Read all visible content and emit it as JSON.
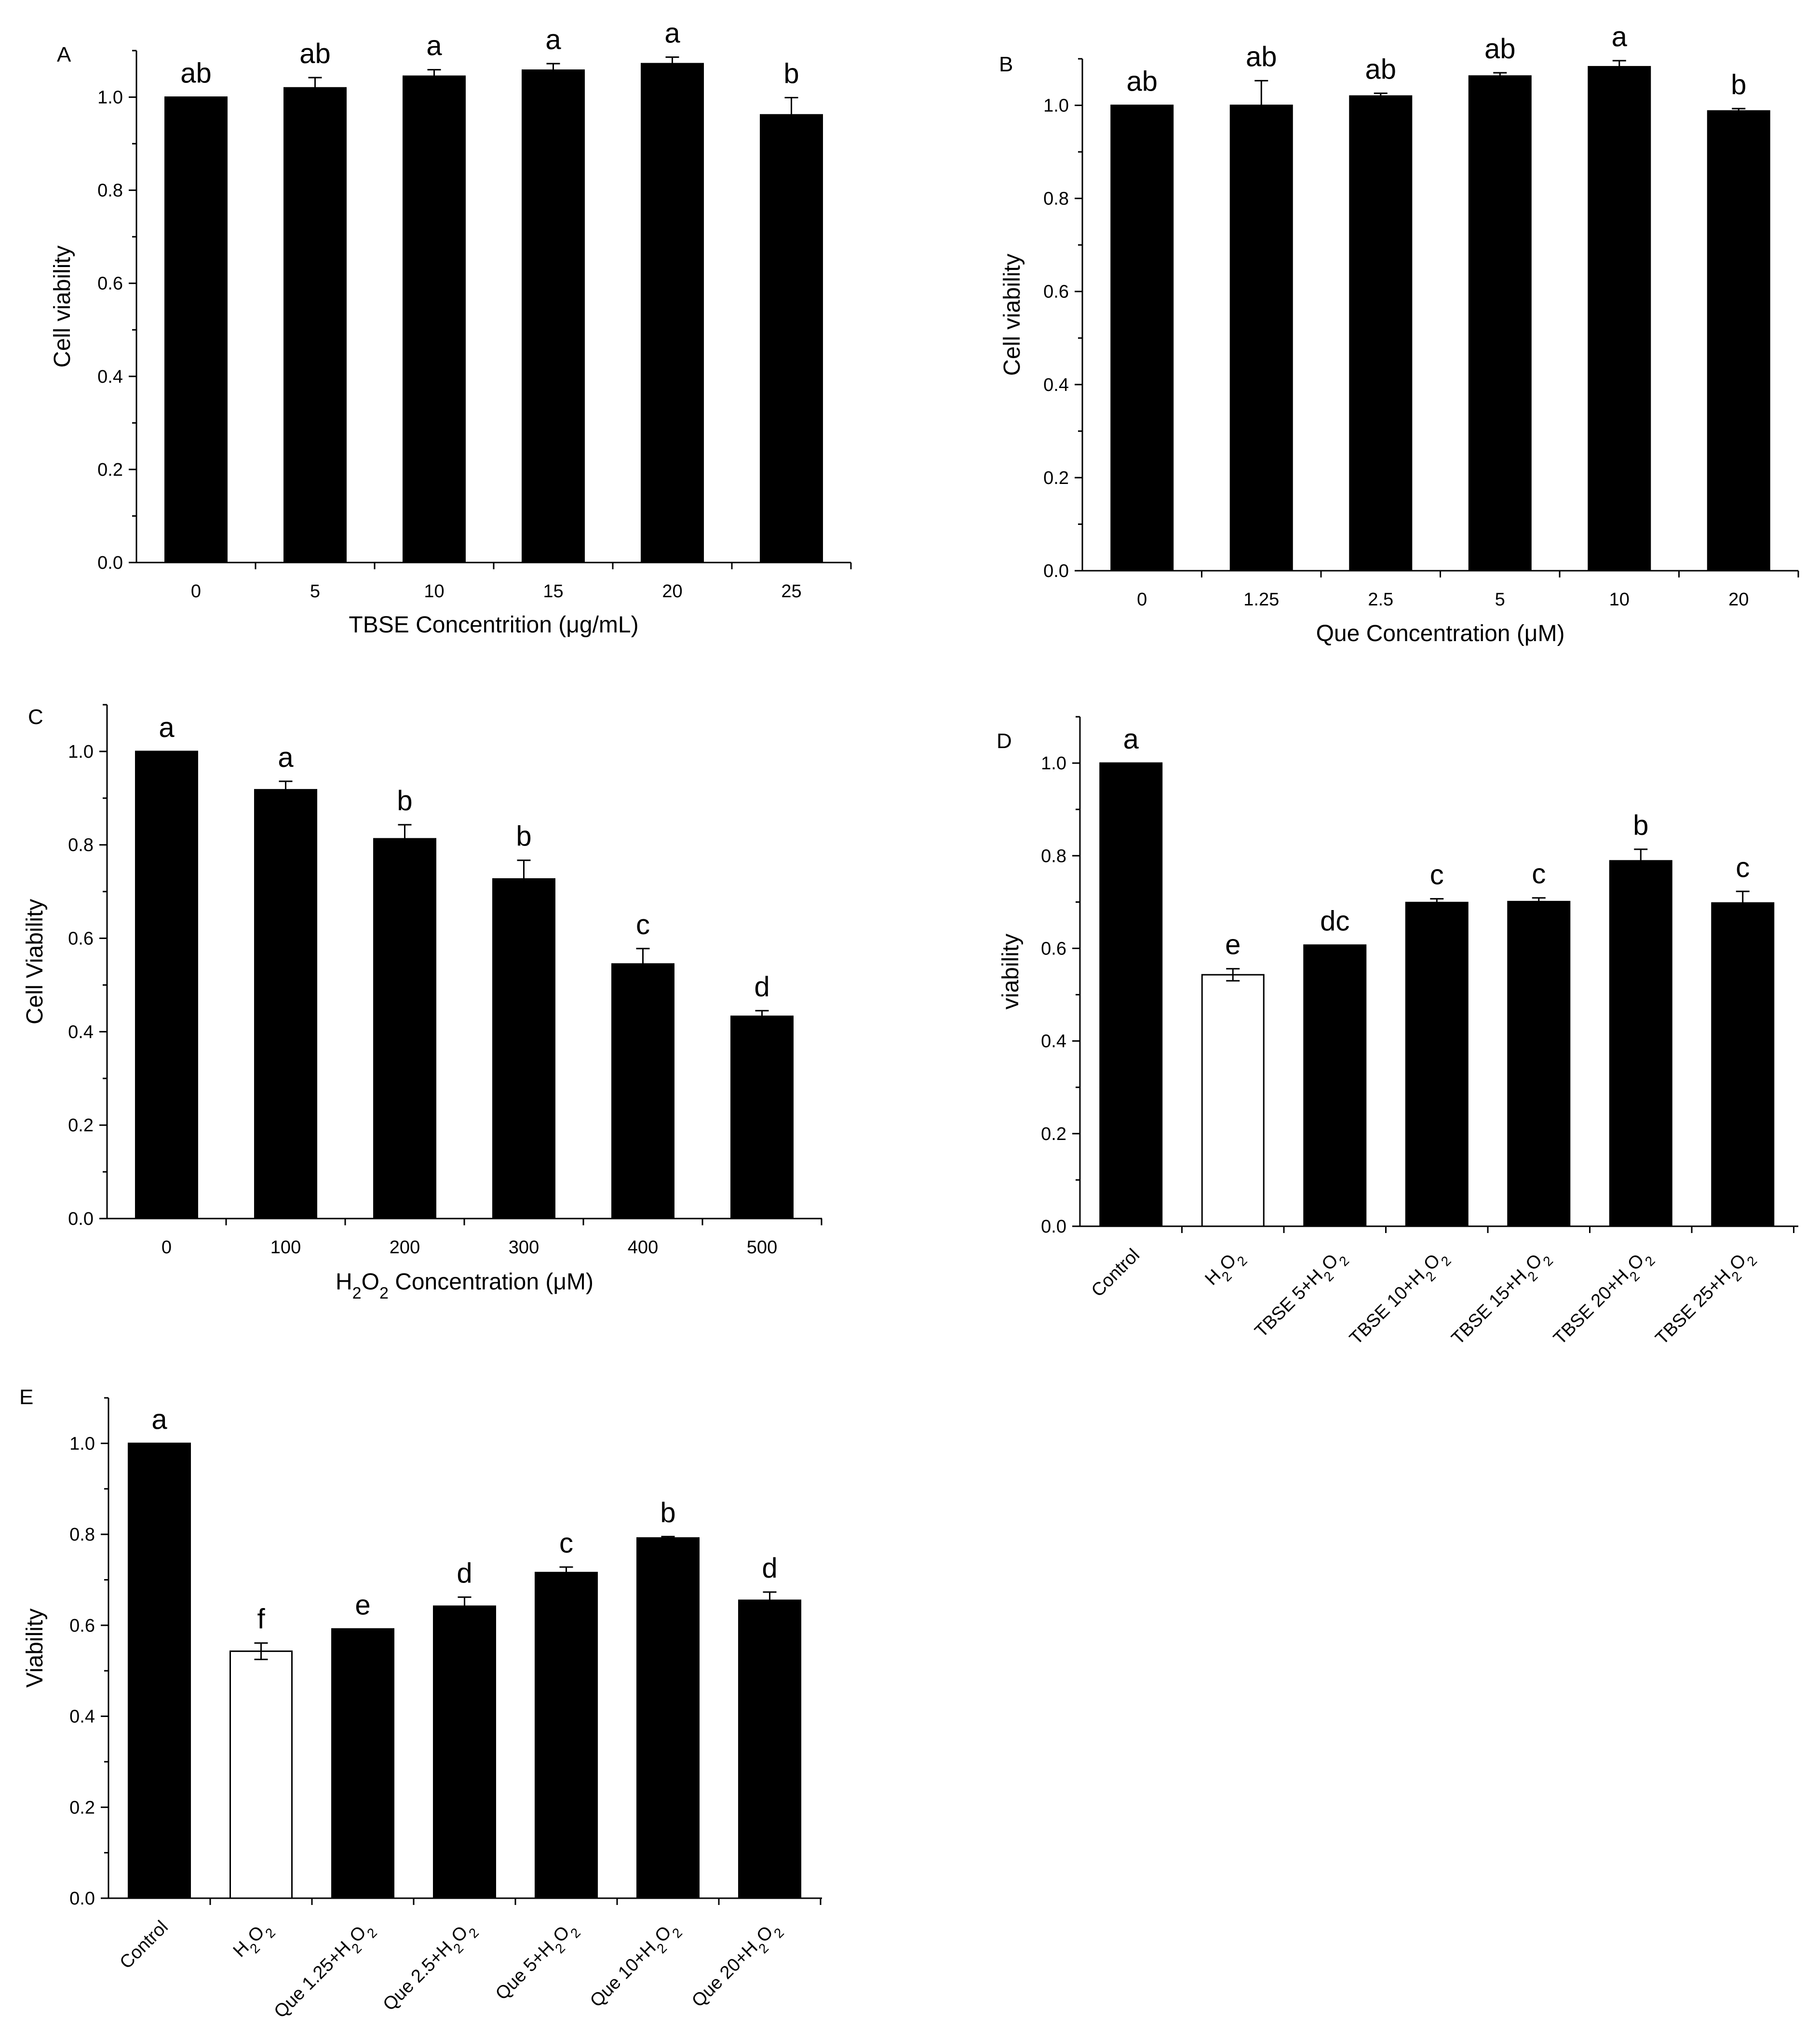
{
  "chart_data": [
    {
      "panel": "A",
      "type": "bar",
      "categories": [
        "0",
        "5",
        "10",
        "15",
        "20",
        "25"
      ],
      "values": [
        1.0,
        1.02,
        1.045,
        1.058,
        1.072,
        0.962
      ],
      "errors": [
        0,
        0.022,
        0.014,
        0.014,
        0.014,
        0.037
      ],
      "sig_letters": [
        "ab",
        "ab",
        "a",
        "a",
        "a",
        "b"
      ],
      "bar_colors": [
        "#000000",
        "#000000",
        "#000000",
        "#000000",
        "#000000",
        "#000000"
      ],
      "xlabel": "TBSE Concentrition (μg/mL)",
      "ylabel": "Cell viability",
      "ylim": [
        0,
        1.1
      ],
      "yticks": [
        "0.0",
        "0.2",
        "0.4",
        "0.6",
        "0.8",
        "1.0"
      ],
      "ytick_values": [
        0,
        0.2,
        0.4,
        0.6,
        0.8,
        1.0
      ]
    },
    {
      "panel": "B",
      "type": "bar",
      "categories": [
        "0",
        "1.25",
        "2.5",
        "5",
        "10",
        "20"
      ],
      "values": [
        1.0,
        1.0,
        1.02,
        1.063,
        1.083,
        0.988
      ],
      "errors": [
        0,
        0.053,
        0.006,
        0.007,
        0.013,
        0.005
      ],
      "sig_letters": [
        "ab",
        "ab",
        "ab",
        "ab",
        "a",
        "b"
      ],
      "bar_colors": [
        "#000000",
        "#000000",
        "#000000",
        "#000000",
        "#000000",
        "#000000"
      ],
      "xlabel": "Que Concentration (μM)",
      "ylabel": "Cell viability",
      "ylim": [
        0,
        1.1
      ],
      "yticks": [
        "0.0",
        "0.2",
        "0.4",
        "0.6",
        "0.8",
        "1.0"
      ],
      "ytick_values": [
        0,
        0.2,
        0.4,
        0.6,
        0.8,
        1.0
      ]
    },
    {
      "panel": "C",
      "type": "bar",
      "categories": [
        "0",
        "100",
        "200",
        "300",
        "400",
        "500"
      ],
      "values": [
        1.0,
        0.918,
        0.813,
        0.727,
        0.545,
        0.433
      ],
      "errors": [
        0,
        0.018,
        0.03,
        0.04,
        0.033,
        0.012
      ],
      "sig_letters": [
        "a",
        "a",
        "b",
        "b",
        "c",
        "d"
      ],
      "bar_colors": [
        "#000000",
        "#000000",
        "#000000",
        "#000000",
        "#000000",
        "#000000"
      ],
      "xlabel": "H2O2 Concentration (μM)",
      "ylabel": "Cell Viability",
      "ylim": [
        0,
        1.1
      ],
      "yticks": [
        "0.0",
        "0.2",
        "0.4",
        "0.6",
        "0.8",
        "1.0"
      ],
      "ytick_values": [
        0,
        0.2,
        0.4,
        0.6,
        0.8,
        1.0
      ]
    },
    {
      "panel": "D",
      "type": "bar",
      "categories": [
        "Control",
        "H2O2",
        "TBSE 5+H2O2",
        "TBSE 10+H2O2",
        "TBSE 15+H2O2",
        "TBSE 20+H2O2",
        "TBSE 25+H2O2"
      ],
      "values": [
        1.0,
        0.543,
        0.607,
        0.699,
        0.701,
        0.789,
        0.698
      ],
      "errors": [
        0,
        0.013,
        0,
        0.008,
        0.008,
        0.025,
        0.025
      ],
      "sig_letters": [
        "a",
        "e",
        "dc",
        "c",
        "c",
        "b",
        "c"
      ],
      "bar_colors": [
        "#000000",
        "#ffffff",
        "#000000",
        "#000000",
        "#000000",
        "#000000",
        "#000000"
      ],
      "xlabel": "",
      "ylabel": "viability",
      "ylim": [
        0,
        1.1
      ],
      "yticks": [
        "0.0",
        "0.2",
        "0.4",
        "0.6",
        "0.8",
        "1.0"
      ],
      "ytick_values": [
        0,
        0.2,
        0.4,
        0.6,
        0.8,
        1.0
      ]
    },
    {
      "panel": "E",
      "type": "bar",
      "categories": [
        "Control",
        "H2O2",
        "Que 1.25+H2O2",
        "Que 2.5+H2O2",
        "Que 5+H2O2",
        "Que 10+H2O2",
        "Que 20+H2O2"
      ],
      "values": [
        1.0,
        0.543,
        0.592,
        0.642,
        0.716,
        0.792,
        0.655
      ],
      "errors": [
        0,
        0.018,
        0,
        0.02,
        0.012,
        0.003,
        0.018
      ],
      "sig_letters": [
        "a",
        "f",
        "e",
        "d",
        "c",
        "b",
        "d"
      ],
      "bar_colors": [
        "#000000",
        "#ffffff",
        "#000000",
        "#000000",
        "#000000",
        "#000000",
        "#000000"
      ],
      "xlabel": "",
      "ylabel": "Viability",
      "ylim": [
        0,
        1.1
      ],
      "yticks": [
        "0.0",
        "0.2",
        "0.4",
        "0.6",
        "0.8",
        "1.0"
      ],
      "ytick_values": [
        0,
        0.2,
        0.4,
        0.6,
        0.8,
        1.0
      ]
    }
  ]
}
